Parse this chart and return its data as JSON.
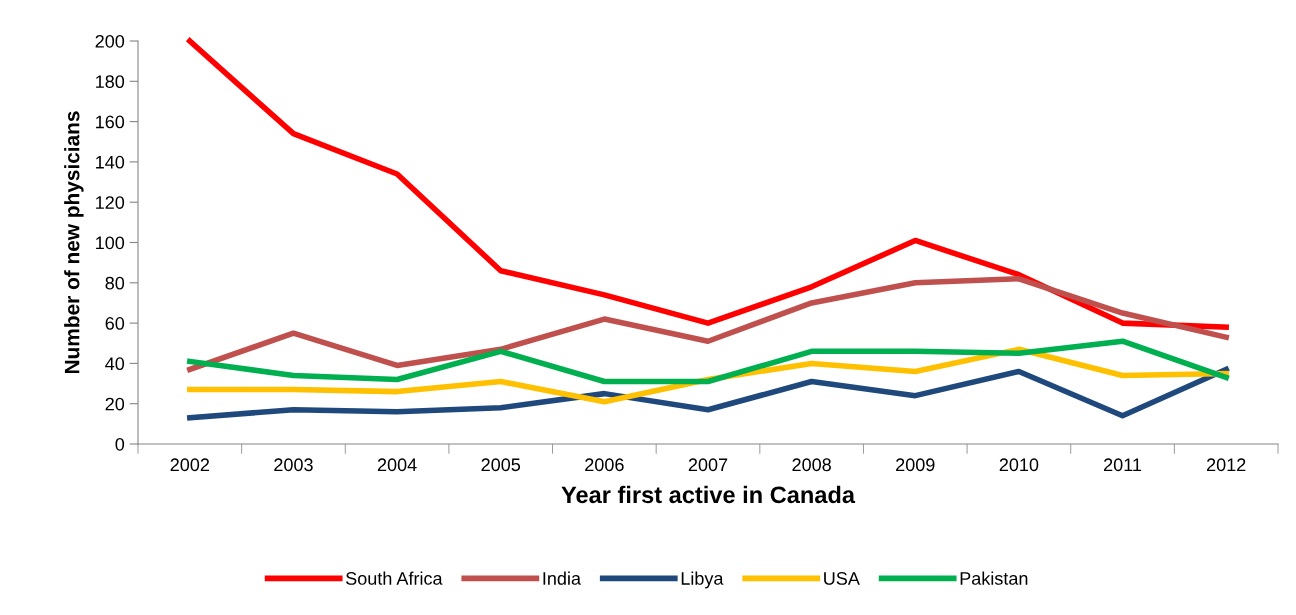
{
  "chart_data": {
    "type": "line",
    "xlabel": "Year first active in Canada",
    "ylabel": "Number of new physicians",
    "categories": [
      "2002",
      "2003",
      "2004",
      "2005",
      "2006",
      "2007",
      "2008",
      "2009",
      "2010",
      "2011",
      "2012"
    ],
    "series": [
      {
        "name": "South Africa",
        "color": "#ff0000",
        "values": [
          200,
          154,
          134,
          86,
          74,
          60,
          78,
          101,
          84,
          60,
          58
        ]
      },
      {
        "name": "India",
        "color": "#c0504d",
        "values": [
          37,
          55,
          39,
          47,
          62,
          51,
          70,
          80,
          82,
          65,
          53
        ]
      },
      {
        "name": "Libya",
        "color": "#1f497d",
        "values": [
          13,
          17,
          16,
          18,
          25,
          17,
          31,
          24,
          36,
          14,
          37
        ]
      },
      {
        "name": "USA",
        "color": "#ffc000",
        "values": [
          27,
          27,
          26,
          31,
          21,
          32,
          40,
          36,
          47,
          34,
          35
        ]
      },
      {
        "name": "Pakistan",
        "color": "#00b050",
        "values": [
          41,
          34,
          32,
          46,
          31,
          31,
          46,
          46,
          45,
          51,
          33
        ]
      }
    ],
    "ylim": [
      0,
      200
    ],
    "yticks": [
      0,
      20,
      40,
      60,
      80,
      100,
      120,
      140,
      160,
      180,
      200
    ],
    "grid": false,
    "legend": "bottom",
    "marker": "none",
    "line_style": "solid"
  }
}
